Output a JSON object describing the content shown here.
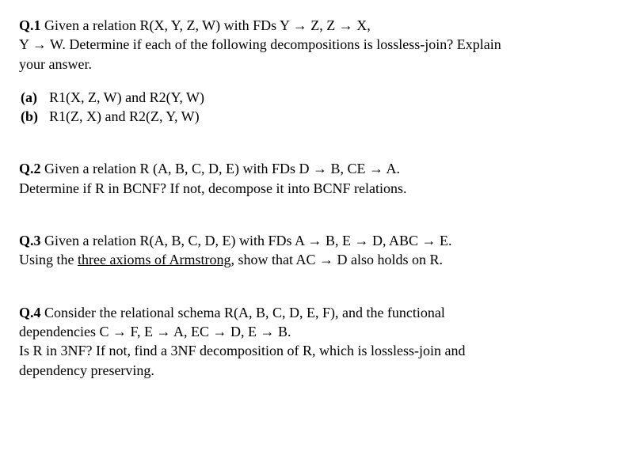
{
  "q1": {
    "label": "Q.1",
    "line1": " Given a relation R(X, Y, Z, W) with FDs Y → Z, Z → X,",
    "line2": "Y → W. Determine if each of the following decompositions is lossless-join? Explain",
    "line3": "your answer.",
    "a_label": "(a)",
    "a_text": "R1(X, Z, W) and R2(Y, W)",
    "b_label": "(b)",
    "b_text": "R1(Z, X) and R2(Z, Y, W)"
  },
  "q2": {
    "label": "Q.2",
    "line1": " Given a relation R (A, B, C, D, E) with FDs  D → B, CE → A.",
    "line2": "Determine if R in BCNF? If not, decompose it into BCNF relations."
  },
  "q3": {
    "label": "Q.3",
    "line1": " Given a relation R(A, B, C, D, E) with FDs A → B, E → D, ABC → E.",
    "line2_pre": "Using the ",
    "line2_underline": "three axioms of Armstrong",
    "line2_post": ", show that AC → D also holds on R."
  },
  "q4": {
    "label": "Q.4",
    "line1": " Consider the relational schema R(A, B, C, D, E, F), and the functional",
    "line2": "dependencies C → F, E → A, EC → D, E → B.",
    "line3": "Is R in 3NF? If not, find a 3NF decomposition of R, which is lossless-join and",
    "line4": "dependency preserving."
  }
}
